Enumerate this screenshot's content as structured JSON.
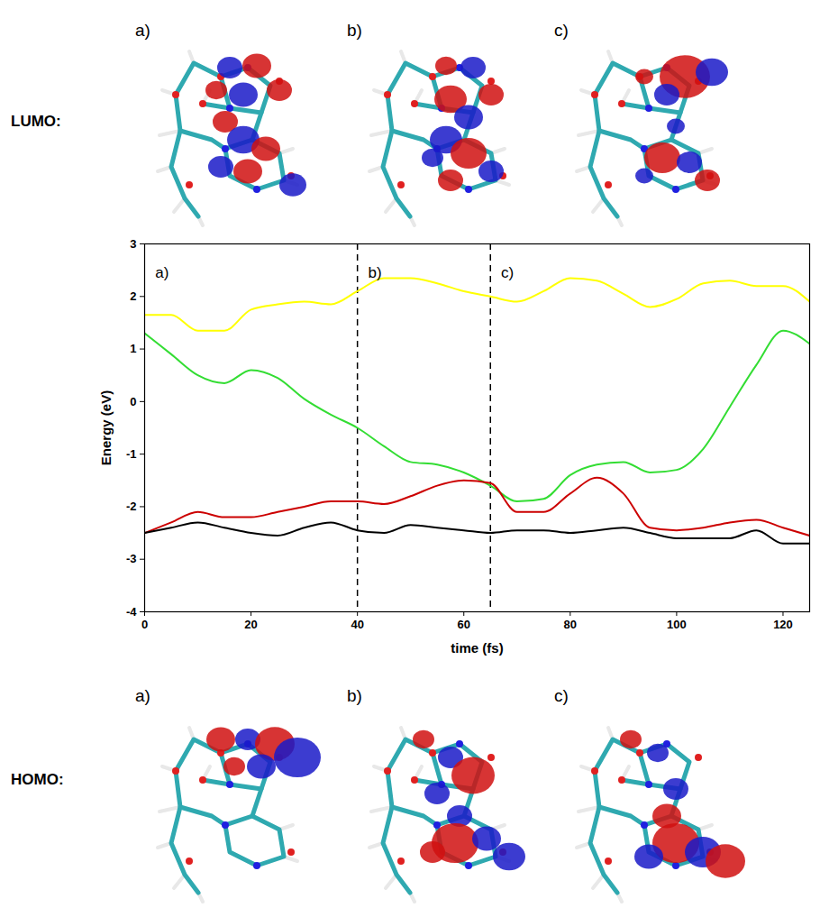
{
  "figure": {
    "rows": [
      {
        "label": "LUMO:",
        "panels": [
          "a)",
          "b)",
          "c)"
        ]
      },
      {
        "label": "HOMO:",
        "panels": [
          "a)",
          "b)",
          "c)"
        ]
      }
    ]
  },
  "chart_data": {
    "type": "line",
    "x_label": "time (fs)",
    "y_label": "Energy (eV)",
    "x": [
      0,
      5,
      10,
      15,
      20,
      25,
      30,
      35,
      40,
      45,
      50,
      55,
      60,
      65,
      70,
      75,
      80,
      85,
      90,
      95,
      100,
      105,
      110,
      115,
      120,
      125
    ],
    "series": [
      {
        "color": "#ffff00",
        "values": [
          1.65,
          1.65,
          1.35,
          1.35,
          1.75,
          1.85,
          1.9,
          1.85,
          2.1,
          2.35,
          2.35,
          2.25,
          2.1,
          2.0,
          1.9,
          2.1,
          2.35,
          2.3,
          2.05,
          1.8,
          1.95,
          2.25,
          2.3,
          2.2,
          2.2,
          1.9
        ]
      },
      {
        "color": "#33dd33",
        "values": [
          1.3,
          0.9,
          0.5,
          0.35,
          0.6,
          0.45,
          0.05,
          -0.25,
          -0.5,
          -0.85,
          -1.15,
          -1.2,
          -1.35,
          -1.6,
          -1.9,
          -1.85,
          -1.4,
          -1.2,
          -1.15,
          -1.35,
          -1.3,
          -0.9,
          -0.1,
          0.7,
          1.35,
          1.1
        ]
      },
      {
        "color": "#cc0000",
        "values": [
          -2.5,
          -2.3,
          -2.1,
          -2.2,
          -2.2,
          -2.1,
          -2.0,
          -1.9,
          -1.9,
          -1.95,
          -1.8,
          -1.6,
          -1.5,
          -1.55,
          -2.1,
          -2.1,
          -1.75,
          -1.45,
          -1.75,
          -2.4,
          -2.45,
          -2.4,
          -2.3,
          -2.25,
          -2.4,
          -2.55
        ]
      },
      {
        "color": "#000000",
        "values": [
          -2.5,
          -2.4,
          -2.3,
          -2.4,
          -2.5,
          -2.55,
          -2.4,
          -2.3,
          -2.45,
          -2.5,
          -2.35,
          -2.4,
          -2.45,
          -2.5,
          -2.45,
          -2.45,
          -2.5,
          -2.45,
          -2.4,
          -2.5,
          -2.6,
          -2.6,
          -2.6,
          -2.45,
          -2.7,
          -2.7
        ]
      }
    ],
    "xlim": [
      0,
      125
    ],
    "xticks": [
      0,
      20,
      40,
      60,
      80,
      100,
      120
    ],
    "ylim": [
      -4,
      3
    ],
    "yticks": [
      -4,
      -3,
      -2,
      -1,
      0,
      1,
      2,
      3
    ],
    "vlines": [
      40,
      65
    ],
    "annotations": [
      {
        "x": 2,
        "y": 2.45,
        "text": "a)"
      },
      {
        "x": 42,
        "y": 2.45,
        "text": "b)"
      },
      {
        "x": 67,
        "y": 2.45,
        "text": "c)"
      }
    ]
  }
}
